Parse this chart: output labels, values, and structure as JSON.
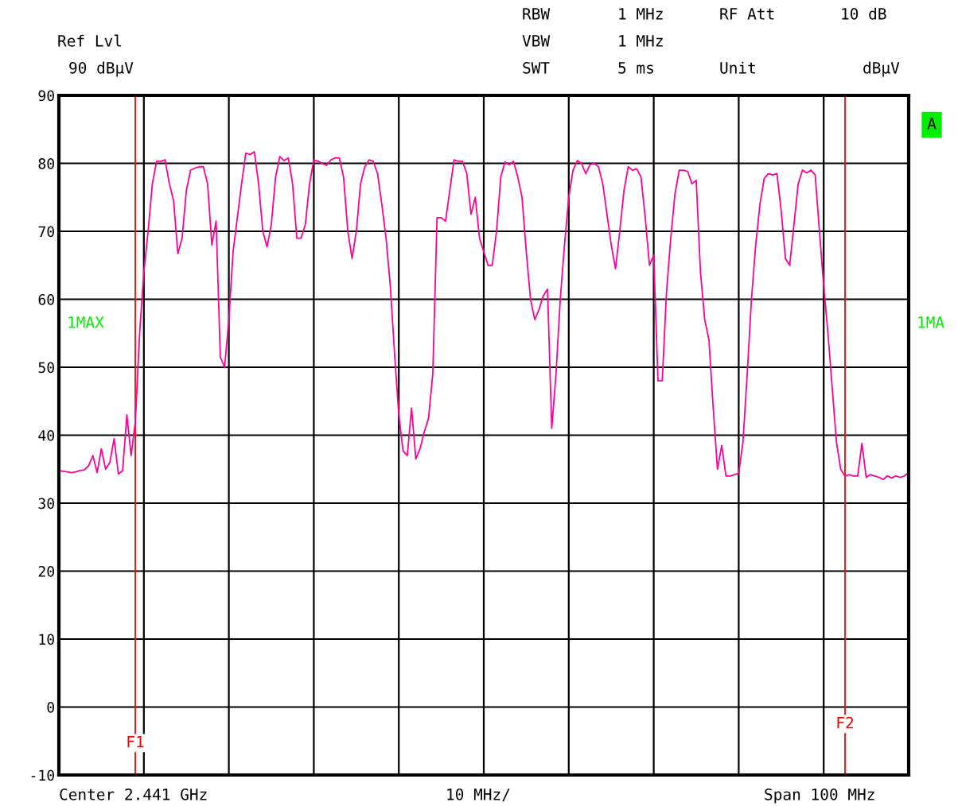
{
  "chart_data": {
    "type": "line",
    "categories": [
      null,
      null,
      null,
      null,
      null,
      null,
      null,
      null,
      null,
      null,
      null,
      null,
      null,
      null,
      null,
      null,
      null,
      null,
      null,
      null,
      null,
      null,
      null,
      null,
      null,
      null,
      null,
      null,
      null,
      null,
      null,
      null,
      null,
      null,
      null,
      null,
      null,
      null,
      null,
      null,
      null,
      null,
      null,
      null,
      null,
      null,
      null,
      null,
      null,
      null,
      null,
      null,
      null,
      null,
      null,
      null,
      null,
      null,
      null,
      null,
      null,
      null,
      null,
      null,
      null,
      null,
      null,
      null,
      null,
      null,
      null,
      null,
      null,
      null,
      null,
      null,
      null,
      null,
      null,
      null,
      null,
      null,
      null,
      null,
      null,
      null,
      null,
      null,
      null,
      null,
      null,
      null,
      null,
      null,
      null,
      null,
      null,
      null,
      null,
      null,
      null,
      null,
      null,
      null,
      null,
      null,
      null,
      null,
      null,
      null,
      null,
      null,
      null,
      null,
      null,
      null,
      null,
      null,
      null,
      null,
      null,
      null,
      null,
      null,
      null,
      null,
      null,
      null,
      null,
      null,
      null,
      null,
      null,
      null,
      null,
      null,
      null,
      null,
      null,
      null,
      null,
      null,
      null,
      null,
      null,
      null,
      null,
      null,
      null,
      null,
      null,
      null,
      null,
      null,
      null,
      null,
      null,
      null,
      null,
      null,
      null,
      null,
      null,
      null,
      null,
      null,
      null,
      null,
      null,
      null,
      null,
      null,
      null,
      null,
      null,
      null,
      null,
      null,
      null,
      null,
      null,
      null,
      null,
      null,
      null,
      null,
      null,
      null,
      null,
      null,
      null,
      null,
      null,
      null,
      null,
      null,
      null,
      null,
      null,
      null,
      null
    ],
    "series": [
      {
        "color": "#ff0099",
        "values": [
          34.8,
          34.7,
          34.6,
          34.5,
          34.6,
          34.8,
          34.9,
          35.5,
          37,
          34.5,
          38,
          35,
          36,
          39.5,
          34.3,
          34.8,
          43,
          37,
          42,
          55,
          64,
          70,
          77,
          80.3,
          80.3,
          80.5,
          77,
          74.5,
          66.7,
          69,
          76,
          79,
          79.3,
          79.5,
          79.5,
          77,
          68,
          71.5,
          51.5,
          50,
          57,
          67,
          72,
          77,
          81.5,
          81.3,
          81.7,
          77,
          70,
          67.7,
          71,
          78,
          81,
          80.4,
          80.8,
          77,
          69,
          69,
          71,
          77,
          80.5,
          80.3,
          80,
          79.7,
          80.5,
          80.8,
          80.8,
          78,
          70,
          66,
          70,
          77,
          79.5,
          80.5,
          80.3,
          78.5,
          74,
          69,
          62,
          52,
          43,
          37.7,
          37,
          44,
          36.5,
          38,
          40.5,
          42.5,
          49,
          72,
          72,
          71.5,
          76,
          80.5,
          80.3,
          80.3,
          78.5,
          72.5,
          75,
          69,
          67,
          65,
          65,
          70,
          78,
          80.2,
          79.8,
          80.3,
          78,
          75,
          67,
          60,
          57,
          58.5,
          60.5,
          61.5,
          41,
          49,
          60,
          68,
          75,
          79,
          80.4,
          80,
          78.5,
          79.8,
          80,
          79.5,
          77,
          72.5,
          68,
          64.5,
          70,
          76,
          79.5,
          79,
          79.2,
          78,
          72,
          65,
          66.5,
          48,
          48,
          61,
          69,
          75.5,
          79,
          79,
          78.8,
          77,
          77.5,
          64,
          57,
          54,
          44,
          35,
          38.5,
          34,
          34,
          34.2,
          34.4,
          39,
          49,
          60,
          68,
          74,
          77.8,
          78.5,
          78.3,
          78.5,
          73,
          66,
          65,
          71,
          77,
          79,
          78.6,
          79,
          78.3,
          70,
          62,
          55,
          47,
          39,
          35,
          34,
          34.2,
          34,
          34,
          38.8,
          33.8,
          34.2,
          34,
          33.8,
          33.5,
          34,
          33.7,
          34,
          33.8,
          34,
          34.5
        ]
      }
    ],
    "ylim": [
      -10,
      90
    ],
    "yticks": [
      90,
      80,
      70,
      60,
      50,
      40,
      30,
      20,
      10,
      0,
      -10
    ],
    "grid": true,
    "marker": "none",
    "line_style": "solid",
    "ref_lines": [
      {
        "axis": "x",
        "label": "F1",
        "color": "#ff0000"
      },
      {
        "axis": "x",
        "label": "F2",
        "color": "#ff0000"
      }
    ],
    "annotations": [
      "Ref Lvl",
      "90 dBμV",
      "RBW",
      "1 MHz",
      "RF Att",
      "10 dB",
      "VBW",
      "1 MHz",
      "SWT",
      "5 ms",
      "Unit",
      "dBμV",
      "1MAX",
      "1MA",
      "A",
      "Center 2.441 GHz",
      "10 MHz/",
      "Span 100 MHz"
    ]
  }
}
